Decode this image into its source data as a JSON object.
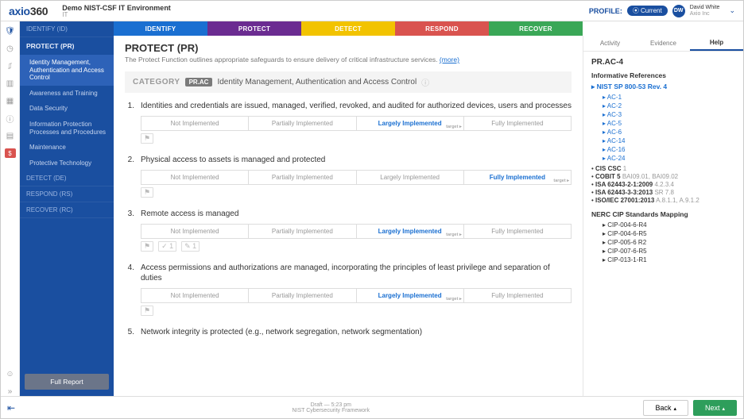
{
  "header": {
    "logo_ax": "axio",
    "logo_360": "360",
    "env_title": "Demo NIST-CSF IT Environment",
    "env_sub": "IT",
    "profile_label": "PROFILE:",
    "profile_pill": "⦿ Current",
    "avatar_initials": "DW",
    "user_name": "David White",
    "user_org": "Axio Inc"
  },
  "iconrail": [
    "shield",
    "gauge",
    "chart",
    "clipboard",
    "grid",
    "info",
    "doc"
  ],
  "leftnav": {
    "identify": "IDENTIFY (ID)",
    "heading": "PROTECT (PR)",
    "items": [
      "Identity Management, Authentication and Access Control",
      "Awareness and Training",
      "Data Security",
      "Information Protection Processes and Procedures",
      "Maintenance",
      "Protective Technology"
    ],
    "detect": "DETECT (DE)",
    "respond": "RESPOND (RS)",
    "recover": "RECOVER (RC)",
    "report_btn": "Full Report"
  },
  "phases": [
    {
      "label": "IDENTIFY",
      "color": "#1a6fd1"
    },
    {
      "label": "PROTECT",
      "color": "#6b2c91"
    },
    {
      "label": "DETECT",
      "color": "#f2c300"
    },
    {
      "label": "RESPOND",
      "color": "#d9534f"
    },
    {
      "label": "RECOVER",
      "color": "#3aa757"
    }
  ],
  "content": {
    "title": "PROTECT (PR)",
    "subtitle_pre": "The Protect Function outlines appropriate safeguards to ensure delivery of critical infrastructure services. ",
    "subtitle_link": "(more)",
    "cat_label": "CATEGORY",
    "cat_code": "PR.AC",
    "cat_name": "Identity Management, Authentication and Access Control",
    "impl_labels": [
      "Not Implemented",
      "Partially Implemented",
      "Largely Implemented",
      "Fully Implemented"
    ],
    "target_label": "target ▸",
    "questions": [
      {
        "n": "1.",
        "text": "Identities and credentials are issued, managed, verified, revoked, and audited for authorized devices, users and processes",
        "selected": 2,
        "flags": [
          "⚑"
        ]
      },
      {
        "n": "2.",
        "text": "Physical access to assets is managed and protected",
        "selected": 3,
        "flags": [
          "⚑"
        ]
      },
      {
        "n": "3.",
        "text": "Remote access is managed",
        "selected": 2,
        "flags": [
          "⚑",
          "✓ 1",
          "✎ 1"
        ]
      },
      {
        "n": "4.",
        "text": "Access permissions and authorizations are managed, incorporating the principles of least privilege and separation of duties",
        "selected": 2,
        "flags": [
          "⚑"
        ]
      },
      {
        "n": "5.",
        "text": "Network integrity is protected (e.g., network segregation, network segmentation)",
        "selected": -1,
        "flags": []
      }
    ]
  },
  "rightpanel": {
    "tabs": [
      "Activity",
      "Evidence",
      "Help"
    ],
    "title": "PR.AC-4",
    "section1": "Informative References",
    "main_ref": "NIST SP 800-53 Rev. 4",
    "sub_refs": [
      "AC-1",
      "AC-2",
      "AC-3",
      "AC-5",
      "AC-6",
      "AC-14",
      "AC-16",
      "AC-24"
    ],
    "bullets": [
      {
        "b": "CIS CSC",
        "g": "1"
      },
      {
        "b": "COBIT 5",
        "g": "BAI09.01, BAI09.02"
      },
      {
        "b": "ISA 62443-2-1:2009",
        "g": "4.2.3.4"
      },
      {
        "b": "ISA 62443-3-3:2013",
        "g": "SR 7.8"
      },
      {
        "b": "ISO/IEC 27001:2013",
        "g": "A.8.1.1, A.9.1.2"
      }
    ],
    "section2": "NERC CIP Standards Mapping",
    "nerc": [
      "CIP-004-6-R4",
      "CIP-004-6-R5",
      "CIP-005-6 R2",
      "CIP-007-6-R5",
      "CIP-013-1-R1"
    ]
  },
  "footer": {
    "mid1": "Draft — 5:23 pm",
    "mid2": "NIST Cybersecurity Framework",
    "back": "Back",
    "next": "Next"
  }
}
